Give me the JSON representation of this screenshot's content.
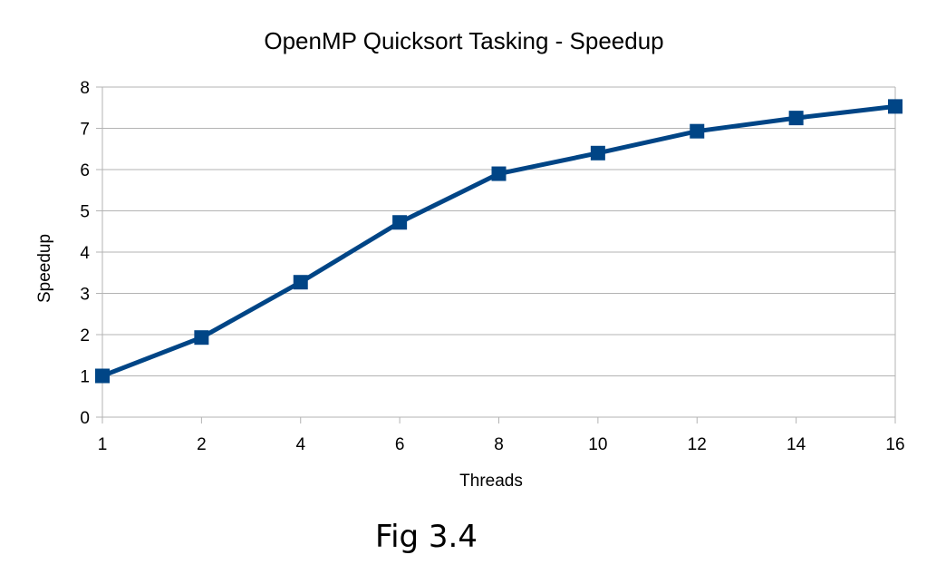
{
  "chart_data": {
    "type": "line",
    "title": "OpenMP Quicksort Tasking - Speedup",
    "xlabel": "Threads",
    "ylabel": "Speedup",
    "categories": [
      "1",
      "2",
      "4",
      "6",
      "8",
      "10",
      "12",
      "14",
      "16"
    ],
    "series": [
      {
        "values": [
          1.0,
          1.93,
          3.27,
          4.72,
          5.9,
          6.4,
          6.93,
          7.25,
          7.53
        ]
      }
    ],
    "ylim": [
      0,
      8
    ],
    "yticks": [
      0,
      1,
      2,
      3,
      4,
      5,
      6,
      7,
      8
    ],
    "grid": true,
    "legend": "none",
    "colors": {
      "line": "#004586",
      "grid": "#b3b3b3"
    }
  },
  "caption": "Fig 3.4"
}
